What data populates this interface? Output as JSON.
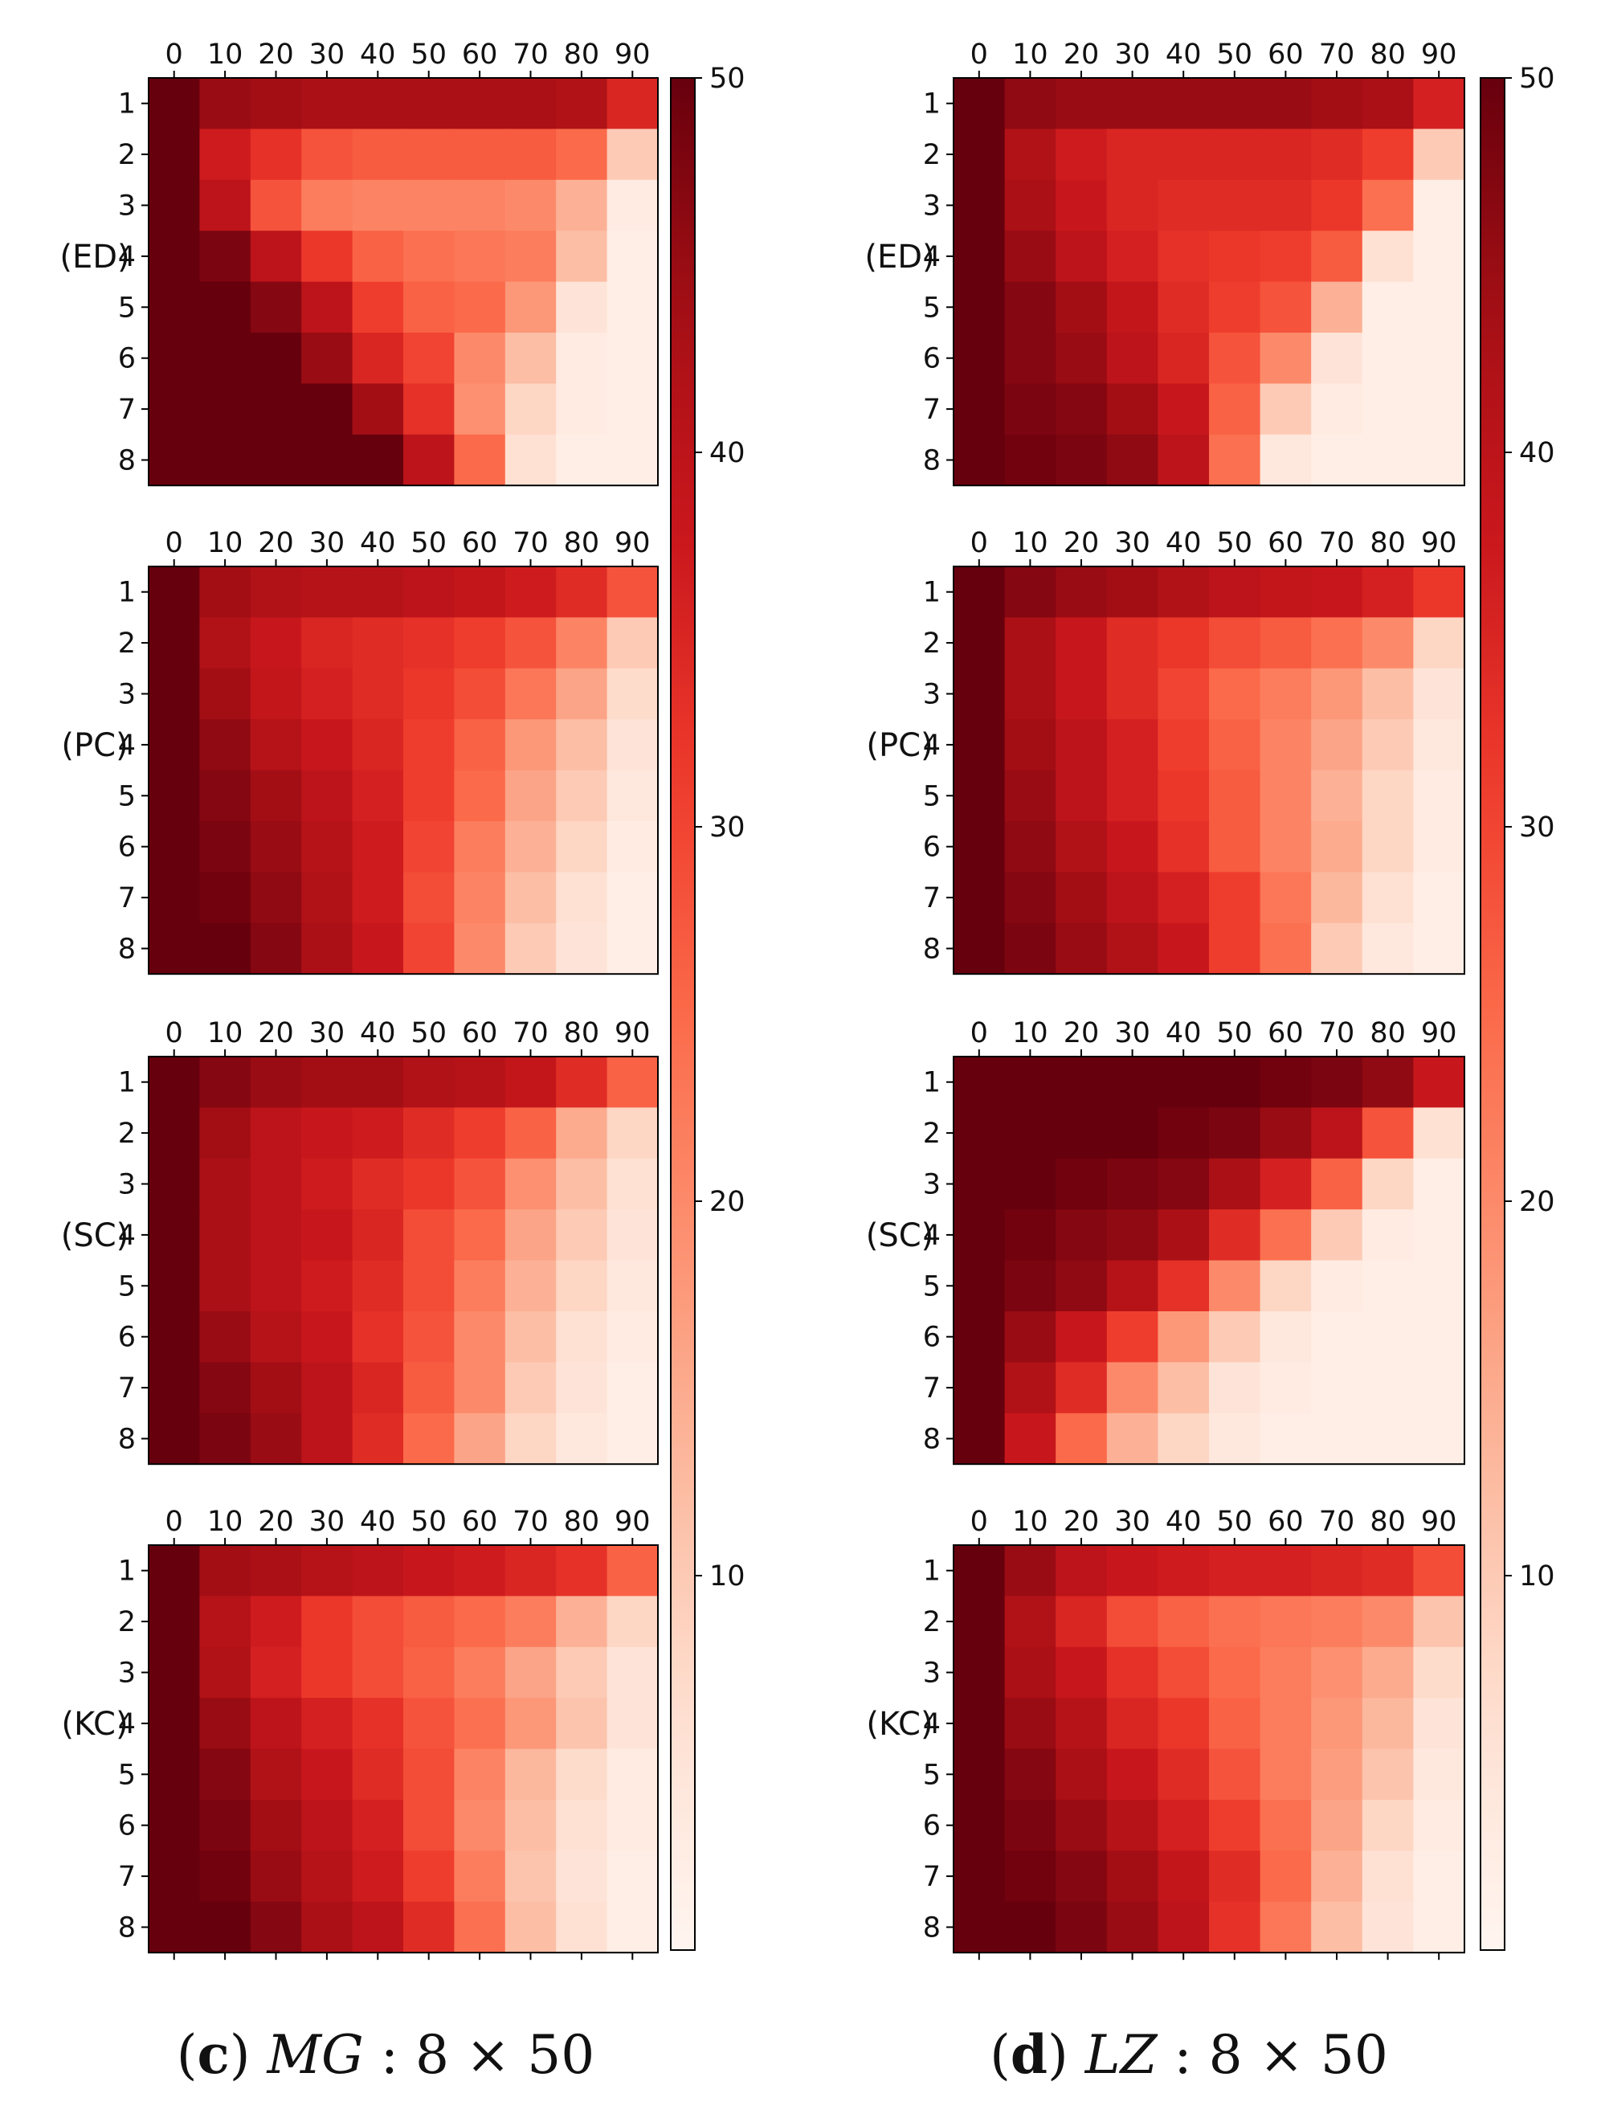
{
  "chart_data": [
    {
      "type": "heatmap",
      "caption": {
        "letter": "c",
        "italic": "MG",
        "rest": " : 8 × 50"
      },
      "x_tick_labels": [
        "0",
        "10",
        "20",
        "30",
        "40",
        "50",
        "60",
        "70",
        "80",
        "90"
      ],
      "y_tick_labels": [
        "1",
        "2",
        "3",
        "4",
        "5",
        "6",
        "7",
        "8"
      ],
      "colorbar": {
        "ticks": [
          10,
          20,
          30,
          40,
          50
        ],
        "vmin": 0,
        "vmax": 50,
        "colormap": "Reds"
      },
      "panels": [
        {
          "label": "(ED)",
          "values": [
            [
              50,
              45,
              44,
              43,
              43,
              43,
              43,
              43,
              42,
              35
            ],
            [
              50,
              37,
              33,
              28,
              27,
              27,
              27,
              27,
              25,
              10
            ],
            [
              50,
              40,
              28,
              22,
              21,
              21,
              21,
              20,
              14,
              3
            ],
            [
              50,
              48,
              40,
              32,
              26,
              24,
              23,
              22,
              12,
              2
            ],
            [
              50,
              50,
              47,
              40,
              31,
              26,
              25,
              18,
              5,
              2
            ],
            [
              50,
              50,
              50,
              45,
              35,
              30,
              20,
              12,
              3,
              2
            ],
            [
              50,
              50,
              50,
              50,
              44,
              33,
              19,
              8,
              3,
              2
            ],
            [
              50,
              50,
              50,
              50,
              50,
              40,
              25,
              6,
              2,
              2
            ]
          ]
        },
        {
          "label": "(PC)",
          "values": [
            [
              50,
              44,
              42,
              41,
              41,
              40,
              39,
              37,
              34,
              28
            ],
            [
              50,
              42,
              38,
              35,
              34,
              33,
              31,
              28,
              21,
              10
            ],
            [
              50,
              44,
              39,
              36,
              34,
              32,
              29,
              23,
              16,
              7
            ],
            [
              50,
              46,
              41,
              38,
              35,
              31,
              26,
              18,
              12,
              5
            ],
            [
              50,
              47,
              44,
              40,
              36,
              31,
              25,
              16,
              10,
              4
            ],
            [
              50,
              48,
              45,
              41,
              37,
              30,
              22,
              14,
              8,
              3
            ],
            [
              50,
              49,
              46,
              42,
              37,
              29,
              21,
              12,
              6,
              2
            ],
            [
              50,
              50,
              47,
              43,
              38,
              30,
              20,
              10,
              5,
              2
            ]
          ]
        },
        {
          "label": "(SC)",
          "values": [
            [
              50,
              47,
              45,
              44,
              44,
              42,
              41,
              39,
              34,
              26
            ],
            [
              50,
              44,
              40,
              38,
              37,
              34,
              31,
              26,
              15,
              8
            ],
            [
              50,
              43,
              40,
              37,
              34,
              32,
              28,
              19,
              12,
              6
            ],
            [
              50,
              43,
              40,
              38,
              35,
              29,
              25,
              16,
              10,
              5
            ],
            [
              50,
              43,
              40,
              37,
              34,
              29,
              22,
              14,
              8,
              4
            ],
            [
              50,
              45,
              41,
              38,
              33,
              28,
              20,
              12,
              6,
              3
            ],
            [
              50,
              47,
              44,
              40,
              35,
              27,
              20,
              10,
              5,
              2
            ],
            [
              50,
              48,
              45,
              40,
              34,
              25,
              16,
              8,
              4,
              2
            ]
          ]
        },
        {
          "label": "(KC)",
          "values": [
            [
              50,
              44,
              43,
              41,
              40,
              38,
              37,
              35,
              33,
              26
            ],
            [
              50,
              41,
              37,
              32,
              29,
              27,
              25,
              22,
              14,
              8
            ],
            [
              50,
              42,
              36,
              32,
              29,
              26,
              22,
              16,
              10,
              5
            ],
            [
              50,
              45,
              40,
              36,
              33,
              28,
              24,
              18,
              11,
              5
            ],
            [
              50,
              47,
              42,
              38,
              34,
              29,
              21,
              13,
              7,
              3
            ],
            [
              50,
              48,
              44,
              40,
              36,
              29,
              20,
              12,
              6,
              3
            ],
            [
              50,
              49,
              45,
              41,
              37,
              31,
              22,
              11,
              5,
              2
            ],
            [
              50,
              50,
              47,
              43,
              40,
              34,
              24,
              12,
              6,
              2
            ]
          ]
        }
      ]
    },
    {
      "type": "heatmap",
      "caption": {
        "letter": "d",
        "italic": "LZ",
        "rest": " : 8 × 50"
      },
      "x_tick_labels": [
        "0",
        "10",
        "20",
        "30",
        "40",
        "50",
        "60",
        "70",
        "80",
        "90"
      ],
      "y_tick_labels": [
        "1",
        "2",
        "3",
        "4",
        "5",
        "6",
        "7",
        "8"
      ],
      "colorbar": {
        "ticks": [
          10,
          20,
          30,
          40,
          50
        ],
        "vmin": 0,
        "vmax": 50,
        "colormap": "Reds"
      },
      "panels": [
        {
          "label": "(ED)",
          "values": [
            [
              50,
              46,
              45,
              45,
              45,
              45,
              45,
              44,
              43,
              36
            ],
            [
              50,
              42,
              37,
              35,
              35,
              35,
              35,
              34,
              31,
              10
            ],
            [
              50,
              43,
              38,
              35,
              34,
              34,
              34,
              32,
              24,
              2
            ],
            [
              50,
              45,
              40,
              36,
              33,
              32,
              31,
              27,
              6,
              2
            ],
            [
              50,
              47,
              44,
              39,
              34,
              31,
              28,
              14,
              2,
              2
            ],
            [
              50,
              47,
              45,
              40,
              35,
              28,
              20,
              5,
              2,
              2
            ],
            [
              50,
              48,
              47,
              44,
              38,
              26,
              10,
              3,
              2,
              2
            ],
            [
              50,
              49,
              48,
              46,
              40,
              24,
              4,
              2,
              2,
              2
            ]
          ]
        },
        {
          "label": "(PC)",
          "values": [
            [
              50,
              47,
              45,
              44,
              42,
              40,
              39,
              38,
              36,
              32
            ],
            [
              50,
              43,
              38,
              34,
              32,
              29,
              27,
              24,
              20,
              8
            ],
            [
              50,
              43,
              38,
              34,
              30,
              25,
              22,
              18,
              12,
              5
            ],
            [
              50,
              44,
              40,
              36,
              31,
              26,
              21,
              16,
              10,
              4
            ],
            [
              50,
              45,
              40,
              36,
              32,
              27,
              21,
              14,
              8,
              3
            ],
            [
              50,
              46,
              42,
              38,
              33,
              27,
              21,
              15,
              8,
              3
            ],
            [
              50,
              47,
              44,
              40,
              36,
              31,
              23,
              13,
              6,
              2
            ],
            [
              50,
              48,
              45,
              42,
              38,
              31,
              24,
              10,
              4,
              2
            ]
          ]
        },
        {
          "label": "(SC)",
          "values": [
            [
              50,
              50,
              50,
              50,
              50,
              50,
              49,
              48,
              46,
              38
            ],
            [
              50,
              50,
              50,
              50,
              49,
              48,
              45,
              40,
              28,
              6
            ],
            [
              50,
              50,
              49,
              48,
              47,
              43,
              36,
              26,
              8,
              2
            ],
            [
              50,
              49,
              47,
              46,
              43,
              34,
              24,
              10,
              3,
              2
            ],
            [
              50,
              48,
              46,
              41,
              33,
              20,
              8,
              3,
              2,
              2
            ],
            [
              50,
              45,
              38,
              31,
              18,
              10,
              4,
              2,
              2,
              2
            ],
            [
              50,
              42,
              34,
              20,
              12,
              5,
              3,
              2,
              2,
              2
            ],
            [
              50,
              38,
              25,
              14,
              8,
              4,
              2,
              2,
              2,
              2
            ]
          ]
        },
        {
          "label": "(KC)",
          "values": [
            [
              50,
              45,
              40,
              38,
              37,
              36,
              36,
              35,
              34,
              29
            ],
            [
              50,
              42,
              35,
              29,
              26,
              24,
              23,
              22,
              20,
              11
            ],
            [
              50,
              43,
              38,
              33,
              29,
              25,
              22,
              19,
              15,
              7
            ],
            [
              50,
              45,
              41,
              35,
              32,
              26,
              22,
              18,
              13,
              5
            ],
            [
              50,
              47,
              43,
              38,
              34,
              28,
              22,
              17,
              11,
              4
            ],
            [
              50,
              48,
              45,
              41,
              36,
              31,
              24,
              16,
              8,
              3
            ],
            [
              50,
              49,
              47,
              44,
              39,
              34,
              25,
              14,
              6,
              2
            ],
            [
              50,
              50,
              48,
              45,
              40,
              33,
              23,
              12,
              5,
              2
            ]
          ]
        }
      ]
    }
  ]
}
